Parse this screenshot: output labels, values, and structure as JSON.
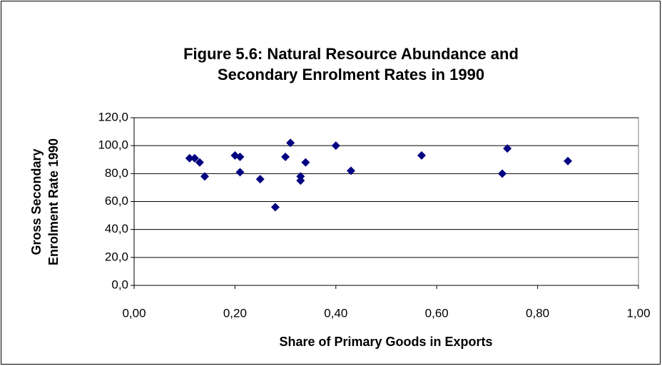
{
  "chart_data": {
    "type": "scatter",
    "title": [
      "Figure 5.6: Natural Resource Abundance and",
      "Secondary Enrolment Rates in 1990"
    ],
    "x_label": "Share of Primary Goods in Exports",
    "y_label": [
      "Gross Secondary",
      "Enrolment Rate 1990"
    ],
    "series": [
      {
        "color": "#000080",
        "x": [
          0.11,
          0.12,
          0.13,
          0.14,
          0.2,
          0.21,
          0.21,
          0.25,
          0.28,
          0.3,
          0.31,
          0.33,
          0.33,
          0.34,
          0.4,
          0.43,
          0.57,
          0.73,
          0.74,
          0.86
        ],
        "values": [
          91,
          91,
          88,
          78,
          93,
          92,
          81,
          76,
          56,
          92,
          102,
          78,
          75,
          88,
          100,
          82,
          93,
          80,
          98,
          89
        ]
      }
    ],
    "xlim": [
      0,
      1
    ],
    "xticks": [
      {
        "value": 0,
        "label": "0,00"
      },
      {
        "value": 0.2,
        "label": "0,20"
      },
      {
        "value": 0.4,
        "label": "0,40"
      },
      {
        "value": 0.6,
        "label": "0,60"
      },
      {
        "value": 0.8,
        "label": "0,80"
      },
      {
        "value": 1,
        "label": "1,00"
      }
    ],
    "ylim": [
      0,
      120
    ],
    "yticks": [
      {
        "value": 0,
        "label": "0,0"
      },
      {
        "value": 20,
        "label": "20,0"
      },
      {
        "value": 40,
        "label": "40,0"
      },
      {
        "value": 60,
        "label": "60,0"
      },
      {
        "value": 80,
        "label": "80,0"
      },
      {
        "value": 100,
        "label": "100,0"
      },
      {
        "value": 120,
        "label": "120,0"
      }
    ],
    "grid": true
  }
}
